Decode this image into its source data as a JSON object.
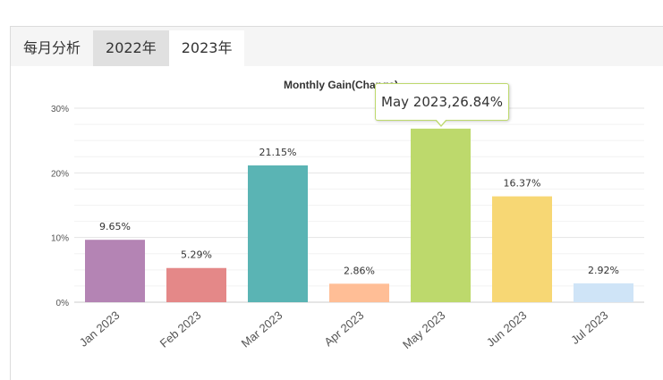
{
  "tabs": {
    "label": "每月分析",
    "items": [
      {
        "label": "2022年",
        "active": false
      },
      {
        "label": "2023年",
        "active": true
      }
    ]
  },
  "tooltip": {
    "text": "May 2023,26.84%"
  },
  "chart_data": {
    "type": "bar",
    "title": "Monthly Gain(Change)",
    "categories": [
      "Jan 2023",
      "Feb 2023",
      "Mar 2023",
      "Apr 2023",
      "May 2023",
      "Jun 2023",
      "Jul 2023"
    ],
    "values": [
      9.65,
      5.29,
      21.15,
      2.86,
      26.84,
      16.37,
      2.92
    ],
    "data_labels": [
      "9.65%",
      "5.29%",
      "21.15%",
      "2.86%",
      "26.84%",
      "16.37%",
      "2.92%"
    ],
    "colors": [
      "#b484b4",
      "#e48888",
      "#5ab4b4",
      "#ffbe96",
      "#bdd96c",
      "#f7d774",
      "#cfe4f7"
    ],
    "yticks": [
      0,
      10,
      20,
      30
    ],
    "ytick_labels": [
      "0%",
      "10%",
      "20%",
      "30%"
    ],
    "ylim": [
      0,
      30
    ],
    "grid": true,
    "highlighted_index": 4
  }
}
